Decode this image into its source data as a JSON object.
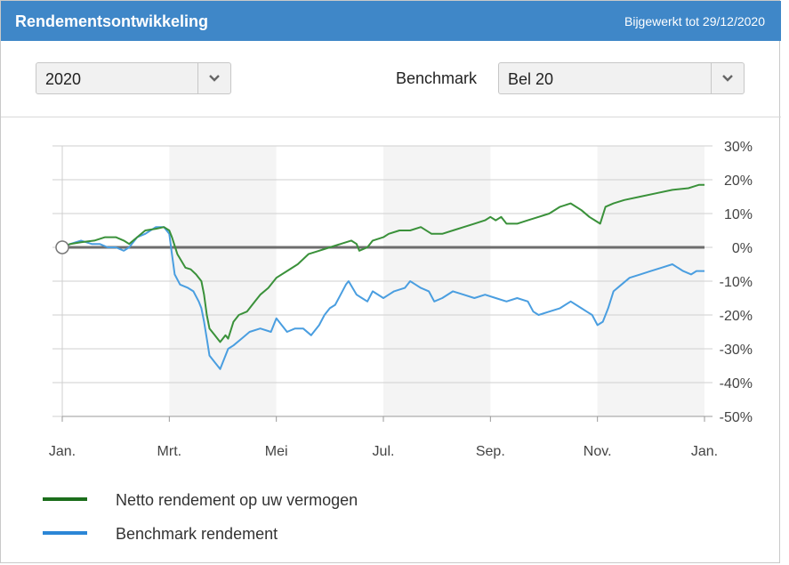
{
  "header": {
    "title": "Rendementsontwikkeling",
    "updated": "Bijgewerkt tot 29/12/2020"
  },
  "controls": {
    "year_value": "2020",
    "benchmark_label": "Benchmark",
    "benchmark_value": "Bel 20"
  },
  "legend": {
    "net_label": "Netto rendement op uw vermogen",
    "bench_label": "Benchmark rendement"
  },
  "colors": {
    "header": "#3f87c8",
    "net": "#3a913a",
    "benchmark": "#4a9ee0",
    "legend_net": "#1c6e1c",
    "legend_benchmark": "#2b86d6"
  },
  "chart_data": {
    "type": "line",
    "x_tick_labels": [
      "Jan.",
      "Mrt.",
      "Mei",
      "Jul.",
      "Sep.",
      "Nov.",
      "Jan."
    ],
    "y_tick_labels": [
      "30%",
      "20%",
      "10%",
      "0%",
      "-10%",
      "-20%",
      "-30%",
      "-40%",
      "-50%"
    ],
    "y_ticks": [
      30,
      20,
      10,
      0,
      -10,
      -20,
      -30,
      -40,
      -50
    ],
    "ylim": [
      -50,
      30
    ],
    "x_unit": "months since 1 Jan 2020",
    "xlim": [
      0,
      12
    ],
    "shaded_bands": [
      [
        2,
        4
      ],
      [
        6,
        8
      ],
      [
        10,
        12
      ]
    ],
    "grid": true,
    "series": [
      {
        "name": "Netto rendement op uw vermogen",
        "points": [
          [
            0,
            0
          ],
          [
            0.15,
            1
          ],
          [
            0.35,
            1.5
          ],
          [
            0.6,
            2
          ],
          [
            0.8,
            3
          ],
          [
            1.0,
            3
          ],
          [
            1.15,
            2
          ],
          [
            1.25,
            1
          ],
          [
            1.4,
            3
          ],
          [
            1.55,
            5
          ],
          [
            1.75,
            5.5
          ],
          [
            1.9,
            6
          ],
          [
            2.0,
            5
          ],
          [
            2.05,
            3
          ],
          [
            2.15,
            -2
          ],
          [
            2.3,
            -6
          ],
          [
            2.4,
            -6.5
          ],
          [
            2.5,
            -8
          ],
          [
            2.6,
            -10
          ],
          [
            2.65,
            -14
          ],
          [
            2.7,
            -20
          ],
          [
            2.75,
            -24
          ],
          [
            2.85,
            -26
          ],
          [
            2.95,
            -28
          ],
          [
            3.05,
            -26
          ],
          [
            3.1,
            -27
          ],
          [
            3.2,
            -22
          ],
          [
            3.3,
            -20
          ],
          [
            3.45,
            -19
          ],
          [
            3.6,
            -16
          ],
          [
            3.7,
            -14
          ],
          [
            3.85,
            -12
          ],
          [
            4.0,
            -9
          ],
          [
            4.2,
            -7
          ],
          [
            4.4,
            -5
          ],
          [
            4.6,
            -2
          ],
          [
            4.8,
            -1
          ],
          [
            5.0,
            0
          ],
          [
            5.2,
            1
          ],
          [
            5.4,
            2
          ],
          [
            5.5,
            1
          ],
          [
            5.55,
            -1
          ],
          [
            5.7,
            0
          ],
          [
            5.8,
            2
          ],
          [
            6.0,
            3
          ],
          [
            6.1,
            4
          ],
          [
            6.3,
            5
          ],
          [
            6.5,
            5
          ],
          [
            6.7,
            6
          ],
          [
            6.9,
            4
          ],
          [
            7.1,
            4
          ],
          [
            7.3,
            5
          ],
          [
            7.5,
            6
          ],
          [
            7.7,
            7
          ],
          [
            7.9,
            8
          ],
          [
            8.0,
            9
          ],
          [
            8.1,
            8
          ],
          [
            8.2,
            9
          ],
          [
            8.3,
            7
          ],
          [
            8.5,
            7
          ],
          [
            8.7,
            8
          ],
          [
            8.9,
            9
          ],
          [
            9.1,
            10
          ],
          [
            9.3,
            12
          ],
          [
            9.5,
            13
          ],
          [
            9.7,
            11
          ],
          [
            9.85,
            9
          ],
          [
            9.95,
            8
          ],
          [
            10.05,
            7
          ],
          [
            10.15,
            12
          ],
          [
            10.3,
            13
          ],
          [
            10.5,
            14
          ],
          [
            10.8,
            15
          ],
          [
            11.1,
            16
          ],
          [
            11.4,
            17
          ],
          [
            11.7,
            17.5
          ],
          [
            11.8,
            18
          ],
          [
            11.9,
            18.5
          ],
          [
            12.0,
            18.5
          ]
        ]
      },
      {
        "name": "Benchmark rendement",
        "points": [
          [
            0,
            0
          ],
          [
            0.15,
            1
          ],
          [
            0.35,
            2
          ],
          [
            0.55,
            1
          ],
          [
            0.7,
            1
          ],
          [
            0.85,
            0
          ],
          [
            1.0,
            0
          ],
          [
            1.15,
            -1
          ],
          [
            1.25,
            0
          ],
          [
            1.4,
            3
          ],
          [
            1.55,
            4
          ],
          [
            1.75,
            6
          ],
          [
            1.9,
            6
          ],
          [
            2.0,
            4
          ],
          [
            2.05,
            -2
          ],
          [
            2.1,
            -8
          ],
          [
            2.2,
            -11
          ],
          [
            2.35,
            -12
          ],
          [
            2.45,
            -13
          ],
          [
            2.55,
            -16
          ],
          [
            2.6,
            -18
          ],
          [
            2.65,
            -22
          ],
          [
            2.7,
            -27
          ],
          [
            2.75,
            -32
          ],
          [
            2.85,
            -34
          ],
          [
            2.95,
            -36
          ],
          [
            3.05,
            -32
          ],
          [
            3.1,
            -30
          ],
          [
            3.2,
            -29
          ],
          [
            3.35,
            -27
          ],
          [
            3.5,
            -25
          ],
          [
            3.7,
            -24
          ],
          [
            3.9,
            -25
          ],
          [
            4.0,
            -21
          ],
          [
            4.1,
            -23
          ],
          [
            4.2,
            -25
          ],
          [
            4.35,
            -24
          ],
          [
            4.5,
            -24
          ],
          [
            4.65,
            -26
          ],
          [
            4.8,
            -23
          ],
          [
            4.9,
            -20
          ],
          [
            5.0,
            -18
          ],
          [
            5.1,
            -17
          ],
          [
            5.2,
            -14
          ],
          [
            5.3,
            -11
          ],
          [
            5.35,
            -10
          ],
          [
            5.5,
            -14
          ],
          [
            5.6,
            -15
          ],
          [
            5.7,
            -16
          ],
          [
            5.8,
            -13
          ],
          [
            6.0,
            -15
          ],
          [
            6.1,
            -14
          ],
          [
            6.2,
            -13
          ],
          [
            6.4,
            -12
          ],
          [
            6.5,
            -10
          ],
          [
            6.6,
            -11
          ],
          [
            6.7,
            -12
          ],
          [
            6.85,
            -13
          ],
          [
            6.95,
            -16
          ],
          [
            7.1,
            -15
          ],
          [
            7.3,
            -13
          ],
          [
            7.5,
            -14
          ],
          [
            7.7,
            -15
          ],
          [
            7.9,
            -14
          ],
          [
            8.1,
            -15
          ],
          [
            8.3,
            -16
          ],
          [
            8.5,
            -15
          ],
          [
            8.7,
            -16
          ],
          [
            8.8,
            -19
          ],
          [
            8.9,
            -20
          ],
          [
            9.1,
            -19
          ],
          [
            9.3,
            -18
          ],
          [
            9.5,
            -16
          ],
          [
            9.7,
            -18
          ],
          [
            9.8,
            -19
          ],
          [
            9.9,
            -20
          ],
          [
            10.0,
            -23
          ],
          [
            10.1,
            -22
          ],
          [
            10.2,
            -18
          ],
          [
            10.3,
            -13
          ],
          [
            10.45,
            -11
          ],
          [
            10.6,
            -9
          ],
          [
            10.8,
            -8
          ],
          [
            11.0,
            -7
          ],
          [
            11.2,
            -6
          ],
          [
            11.4,
            -5
          ],
          [
            11.6,
            -7
          ],
          [
            11.75,
            -8
          ],
          [
            11.85,
            -7
          ],
          [
            12.0,
            -7
          ]
        ]
      }
    ]
  }
}
